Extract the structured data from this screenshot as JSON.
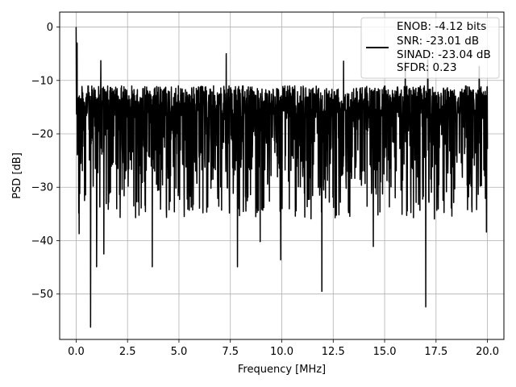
{
  "chart_data": {
    "type": "line",
    "title": "",
    "xlabel": "Frequency [MHz]",
    "ylabel": "PSD [dB]",
    "xlim": [
      -0.8,
      20.8
    ],
    "ylim": [
      -58.5,
      2.8
    ],
    "grid": true,
    "xticks": [
      0.0,
      2.5,
      5.0,
      7.5,
      10.0,
      12.5,
      15.0,
      17.5,
      20.0
    ],
    "xtick_labels": [
      "0.0",
      "2.5",
      "5.0",
      "7.5",
      "10.0",
      "12.5",
      "15.0",
      "17.5",
      "20.0"
    ],
    "yticks": [
      0,
      -10,
      -20,
      -30,
      -40,
      -50
    ],
    "ytick_labels": [
      "0",
      "−10",
      "−20",
      "−30",
      "−40",
      "−50"
    ],
    "legend": {
      "placement": "upper-right",
      "entries": [
        "ENOB: -4.12 bits",
        "SNR: -23.01 dB",
        "SINAD: -23.04 dB",
        "SFDR: 0.23"
      ]
    },
    "series": [
      {
        "color": "#000000",
        "x_range": [
          0.0,
          20.0
        ],
        "n_points": 2048,
        "typical_floor_db": -19,
        "typical_band_db": [
          -27,
          -11
        ],
        "peaks": [
          {
            "x": 0.0,
            "y": 0.0
          },
          {
            "x": 0.05,
            "y": -3.0
          },
          {
            "x": 1.2,
            "y": -6.3
          },
          {
            "x": 7.3,
            "y": -5.0
          },
          {
            "x": 13.0,
            "y": -6.4
          },
          {
            "x": 16.0,
            "y": -6.5
          },
          {
            "x": 17.1,
            "y": -6.1
          },
          {
            "x": 19.6,
            "y": -7.4
          }
        ],
        "dips": [
          {
            "x": 0.15,
            "y": -38.7
          },
          {
            "x": 0.7,
            "y": -56.2
          },
          {
            "x": 1.0,
            "y": -44.9
          },
          {
            "x": 1.35,
            "y": -42.5
          },
          {
            "x": 3.7,
            "y": -44.9
          },
          {
            "x": 7.85,
            "y": -44.9
          },
          {
            "x": 8.95,
            "y": -40.2
          },
          {
            "x": 9.95,
            "y": -43.6
          },
          {
            "x": 11.95,
            "y": -49.5
          },
          {
            "x": 14.45,
            "y": -41.1
          },
          {
            "x": 17.0,
            "y": -52.4
          },
          {
            "x": 19.95,
            "y": -38.4
          }
        ]
      }
    ]
  }
}
